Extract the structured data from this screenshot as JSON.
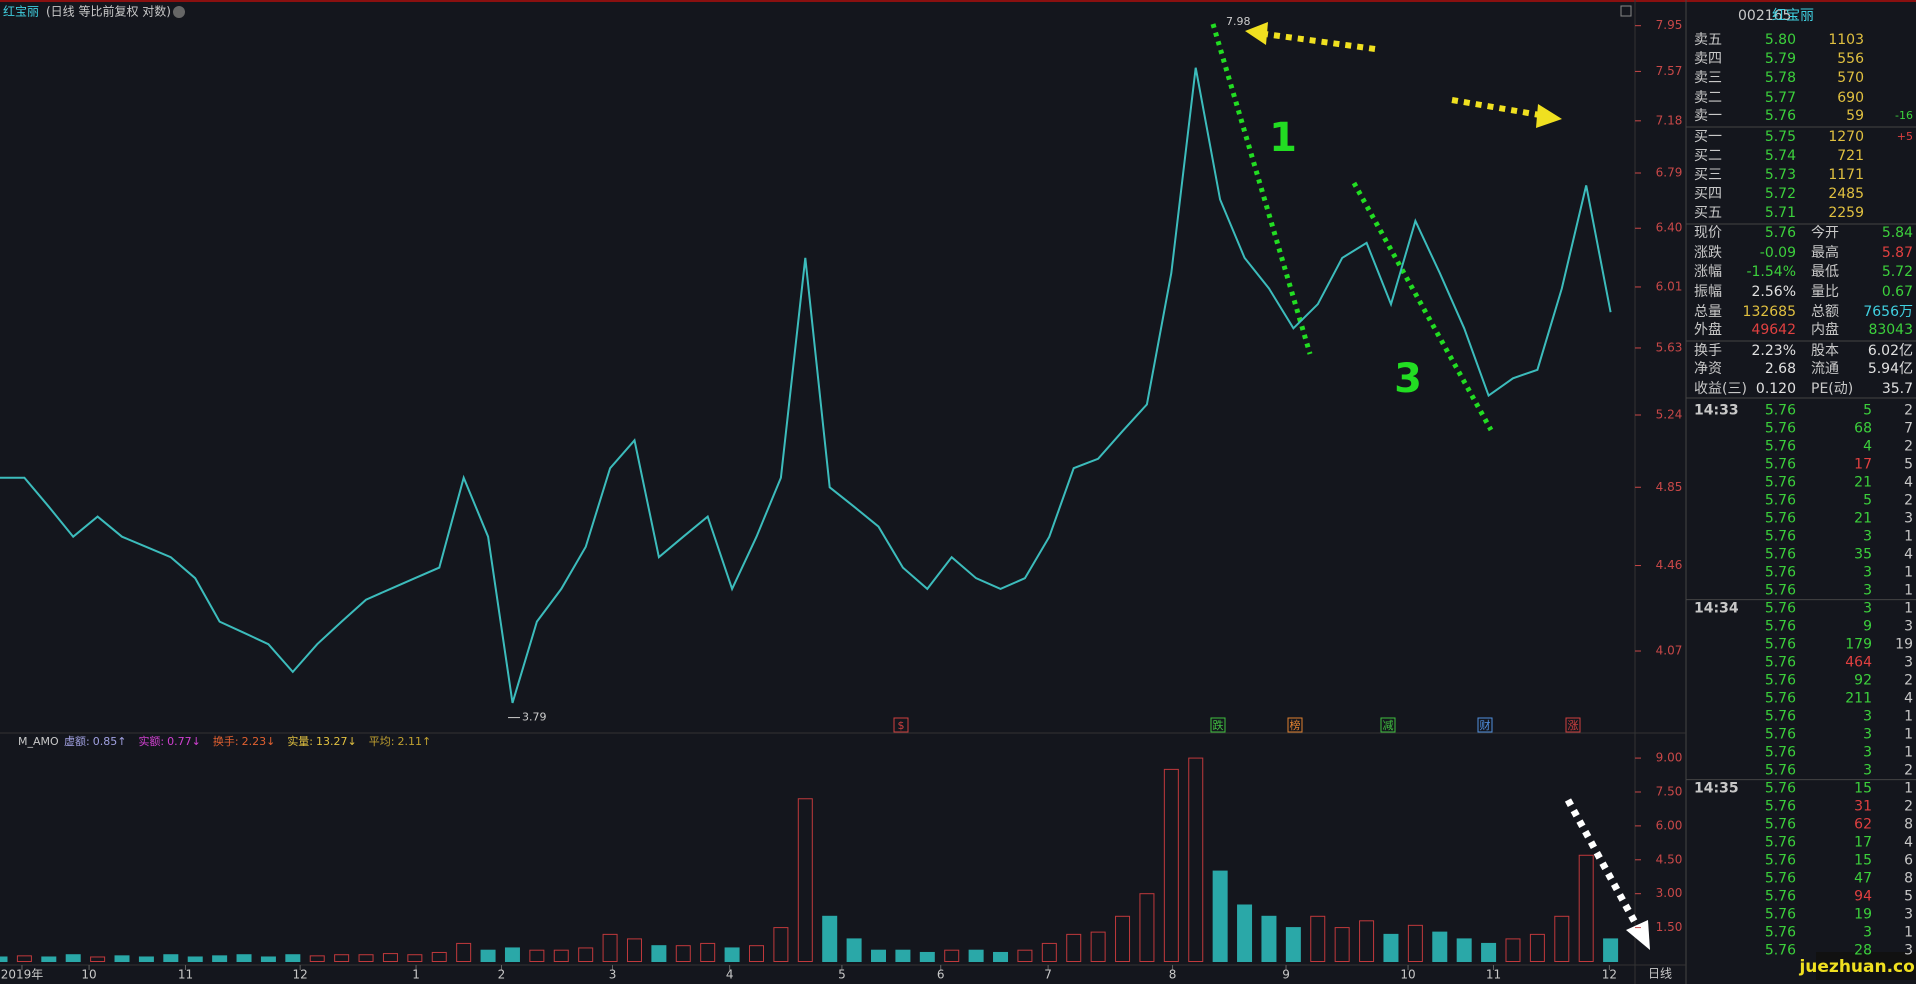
{
  "header": {
    "title": "红宝丽",
    "subtitle": "(日线 等比前复权 对数)"
  },
  "chart_data": [
    {
      "type": "line",
      "log": true,
      "color": "#3cbcbc",
      "ylim": [
        3.72,
        8.05
      ],
      "xlim": [
        0,
        67
      ],
      "yticks": [
        7.95,
        7.57,
        7.18,
        6.79,
        {
          "value": 6.4,
          "label": "6.40"
        },
        6.01,
        5.63,
        5.24,
        4.85,
        4.46,
        4.07
      ],
      "xticks": [
        {
          "value": 0.9,
          "label": "2019年"
        },
        {
          "value": 3.65,
          "label": "10"
        },
        {
          "value": 7.6,
          "label": "11"
        },
        {
          "value": 12.3,
          "label": "12"
        },
        {
          "value": 17.05,
          "label": "1"
        },
        {
          "value": 20.55,
          "label": "2"
        },
        {
          "value": 25.1,
          "label": "3"
        },
        {
          "value": 29.9,
          "label": "4"
        },
        {
          "value": 34.5,
          "label": "5"
        },
        {
          "value": 38.55,
          "label": "6"
        },
        {
          "value": 42.95,
          "label": "7"
        },
        {
          "value": 48.05,
          "label": "8"
        },
        {
          "value": 52.7,
          "label": "9"
        },
        {
          "value": 57.7,
          "label": "10"
        },
        {
          "value": 61.2,
          "label": "11"
        },
        {
          "value": 65.95,
          "label": "12"
        }
      ],
      "values": [
        4.9,
        4.9,
        4.75,
        4.6,
        4.7,
        4.6,
        4.55,
        4.5,
        4.4,
        4.2,
        4.15,
        4.1,
        3.98,
        4.1,
        4.2,
        4.3,
        4.35,
        4.4,
        4.45,
        4.9,
        4.6,
        3.85,
        4.2,
        4.35,
        4.55,
        4.95,
        5.1,
        4.5,
        4.6,
        4.7,
        4.35,
        4.6,
        4.9,
        6.2,
        4.85,
        4.75,
        4.65,
        4.45,
        4.35,
        4.5,
        4.4,
        4.35,
        4.4,
        4.6,
        4.95,
        5.0,
        5.15,
        5.3,
        6.1,
        7.6,
        6.6,
        6.2,
        6.0,
        5.75,
        5.9,
        6.2,
        6.3,
        5.9,
        6.45,
        6.1,
        5.75,
        5.35,
        5.45,
        5.5,
        6.0,
        6.7,
        5.85
      ],
      "annotations": [
        {
          "text": "7.98",
          "value": 7.98
        },
        {
          "text": "3.79",
          "value": 3.79
        },
        {
          "text": "1"
        },
        {
          "text": "3"
        }
      ],
      "events": [
        {
          "text": "$",
          "color": "#d04040"
        },
        {
          "text": "跌",
          "color": "#40c040"
        },
        {
          "text": "榜",
          "color": "#e08030"
        },
        {
          "text": "减",
          "color": "#40c040"
        },
        {
          "text": "财",
          "color": "#5090e0"
        },
        {
          "text": "涨",
          "color": "#d04040"
        }
      ]
    },
    {
      "type": "bar",
      "up_color": "#c0393c",
      "down_color": "#2aa8a8",
      "ylim": [
        0,
        9.8
      ],
      "xlim": [
        0,
        67
      ],
      "yticks": [
        {
          "value": 9,
          "label": "9.00"
        },
        {
          "value": 7.5,
          "label": "7.50"
        },
        {
          "value": 6,
          "label": "6.00"
        },
        {
          "value": 4.5,
          "label": "4.50"
        },
        {
          "value": 3,
          "label": "3.00"
        },
        {
          "value": 1.5,
          "label": "1.50"
        }
      ],
      "indicator": {
        "name": "M_AMO",
        "items": [
          {
            "label": "虚额:",
            "value": "0.85↑",
            "color": "#a0a0e0"
          },
          {
            "label": "实额:",
            "value": "0.77↓",
            "color": "#d040d0"
          },
          {
            "label": "换手:",
            "value": "2.23↓",
            "color": "#e06030"
          },
          {
            "label": "实量:",
            "value": "13.27↓",
            "color": "#e0c040"
          },
          {
            "label": "平均:",
            "value": "2.11↑",
            "color": "#c0a030"
          }
        ]
      },
      "values": [
        0.2,
        0.25,
        0.2,
        0.3,
        0.2,
        0.25,
        0.2,
        0.3,
        0.2,
        0.25,
        0.3,
        0.2,
        0.3,
        0.25,
        0.3,
        0.3,
        0.35,
        0.3,
        0.4,
        0.8,
        0.5,
        0.6,
        0.5,
        0.5,
        0.6,
        1.2,
        1.0,
        0.7,
        0.7,
        0.8,
        0.6,
        0.7,
        1.5,
        7.2,
        2.0,
        1.0,
        0.5,
        0.5,
        0.4,
        0.5,
        0.5,
        0.4,
        0.5,
        0.8,
        1.2,
        1.3,
        2.0,
        3.0,
        8.5,
        9.0,
        4.0,
        2.5,
        2.0,
        1.5,
        2.0,
        1.5,
        1.8,
        1.2,
        1.6,
        1.3,
        1.0,
        0.8,
        1.0,
        1.2,
        2.0,
        4.7,
        1.0
      ]
    }
  ],
  "panel": {
    "code": "002165",
    "name": "红宝丽",
    "book": [
      [
        "卖五",
        "5.80",
        "1103",
        ""
      ],
      [
        "卖四",
        "5.79",
        "556",
        ""
      ],
      [
        "卖三",
        "5.78",
        "570",
        ""
      ],
      [
        "卖二",
        "5.77",
        "690",
        ""
      ],
      [
        "卖一",
        "5.76",
        "59",
        "-16"
      ],
      [
        "买一",
        "5.75",
        "1270",
        "+5"
      ],
      [
        "买二",
        "5.74",
        "721",
        ""
      ],
      [
        "买三",
        "5.73",
        "1171",
        ""
      ],
      [
        "买四",
        "5.72",
        "2485",
        ""
      ],
      [
        "买五",
        "5.71",
        "2259",
        ""
      ]
    ],
    "quote": [
      [
        {
          "t": "现价"
        },
        {
          "t": "5.76",
          "c": "#3cd03c"
        },
        {
          "t": "今开"
        },
        {
          "t": "5.84",
          "c": "#3cd03c"
        }
      ],
      [
        {
          "t": "涨跌"
        },
        {
          "t": "-0.09",
          "c": "#3cd03c"
        },
        {
          "t": "最高"
        },
        {
          "t": "5.87",
          "c": "#e04040"
        }
      ],
      [
        {
          "t": "涨幅"
        },
        {
          "t": "-1.54%",
          "c": "#3cd03c"
        },
        {
          "t": "最低"
        },
        {
          "t": "5.72",
          "c": "#3cd03c"
        }
      ],
      [
        {
          "t": "振幅"
        },
        {
          "t": "2.56%",
          "c": "#e0e0e0"
        },
        {
          "t": "量比"
        },
        {
          "t": "0.67",
          "c": "#3cd03c"
        }
      ],
      [
        {
          "t": "总量"
        },
        {
          "t": "132685",
          "c": "#e0c040"
        },
        {
          "t": "总额"
        },
        {
          "t": "7656万",
          "c": "#40d0e0"
        }
      ],
      [
        {
          "t": "外盘"
        },
        {
          "t": "49642",
          "c": "#e04040"
        },
        {
          "t": "内盘"
        },
        {
          "t": "83043",
          "c": "#3cd03c"
        }
      ],
      [
        {
          "t": "换手"
        },
        {
          "t": "2.23%",
          "c": "#e0e0e0"
        },
        {
          "t": "股本"
        },
        {
          "t": "6.02亿",
          "c": "#e0e0e0"
        }
      ],
      [
        {
          "t": "净资"
        },
        {
          "t": "2.68",
          "c": "#e0e0e0"
        },
        {
          "t": "流通"
        },
        {
          "t": "5.94亿",
          "c": "#e0e0e0"
        }
      ],
      [
        {
          "t": "收益(三)"
        },
        {
          "t": "0.120",
          "c": "#e0e0e0"
        },
        {
          "t": "PE(动)"
        },
        {
          "t": "35.7",
          "c": "#e0e0e0"
        }
      ]
    ],
    "ticks": [
      {
        "time": "14:33",
        "rows": [
          [
            "5.76",
            "5",
            "2",
            0
          ],
          [
            "5.76",
            "68",
            "7",
            0
          ],
          [
            "5.76",
            "4",
            "2",
            0
          ],
          [
            "5.76",
            "17",
            "5",
            1
          ],
          [
            "5.76",
            "21",
            "4",
            0
          ],
          [
            "5.76",
            "5",
            "2",
            0
          ],
          [
            "5.76",
            "21",
            "3",
            0
          ],
          [
            "5.76",
            "3",
            "1",
            0
          ],
          [
            "5.76",
            "35",
            "4",
            0
          ],
          [
            "5.76",
            "3",
            "1",
            0
          ],
          [
            "5.76",
            "3",
            "1",
            0
          ]
        ]
      },
      {
        "time": "14:34",
        "rows": [
          [
            "5.76",
            "3",
            "1",
            0
          ],
          [
            "5.76",
            "9",
            "3",
            0
          ],
          [
            "5.76",
            "179",
            "19",
            0
          ],
          [
            "5.76",
            "464",
            "3",
            1
          ],
          [
            "5.76",
            "92",
            "2",
            0
          ],
          [
            "5.76",
            "211",
            "4",
            0
          ],
          [
            "5.76",
            "3",
            "1",
            0
          ],
          [
            "5.76",
            "3",
            "1",
            0
          ],
          [
            "5.76",
            "3",
            "1",
            0
          ],
          [
            "5.76",
            "3",
            "2",
            0
          ]
        ]
      },
      {
        "time": "14:35",
        "rows": [
          [
            "5.76",
            "15",
            "1",
            0
          ],
          [
            "5.76",
            "31",
            "2",
            1
          ],
          [
            "5.76",
            "62",
            "8",
            1
          ],
          [
            "5.76",
            "17",
            "4",
            0
          ],
          [
            "5.76",
            "15",
            "6",
            0
          ],
          [
            "5.76",
            "47",
            "8",
            0
          ],
          [
            "5.76",
            "94",
            "5",
            1
          ],
          [
            "5.76",
            "19",
            "3",
            0
          ],
          [
            "5.76",
            "3",
            "1",
            0
          ],
          [
            "5.76",
            "28",
            "3",
            0
          ]
        ]
      }
    ],
    "period": "日线",
    "watermark": "juezhuan.com"
  }
}
